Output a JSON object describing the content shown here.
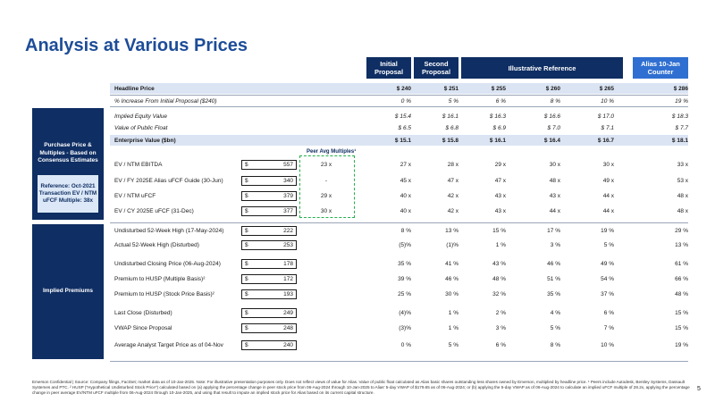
{
  "page": {
    "title": "Analysis at Various Prices",
    "page_number": "5"
  },
  "headers": {
    "initial": "Initial Proposal",
    "second": "Second Proposal",
    "illustrative": "Illustrative Reference",
    "alias": "Alias 10-Jan Counter"
  },
  "sidebar": {
    "purchase": "Purchase Price & Multiples - Based on Consensus Estimates",
    "reference": "Reference: Oct-2021 Transaction EV / NTM uFCF Multiple: 38x",
    "premiums": "Implied Premiums"
  },
  "peer_label": "Peer Avg Multiples¹",
  "rows_top": [
    {
      "label": "Headline Price",
      "values": [
        "$ 240",
        "$ 251",
        "$ 255",
        "$ 260",
        "$ 265",
        "$ 286"
      ]
    },
    {
      "label": "% Increase From Initial Proposal ($240)",
      "values": [
        "0 %",
        "5 %",
        "6 %",
        "8 %",
        "10 %",
        "19 %"
      ]
    }
  ],
  "rows_purchase": [
    {
      "label": "Implied Equity Value",
      "values": [
        "$ 15.4",
        "$ 16.1",
        "$ 16.3",
        "$ 16.6",
        "$ 17.0",
        "$ 18.3"
      ]
    },
    {
      "label": "Value of Public Float",
      "values": [
        "$ 6.5",
        "$ 6.8",
        "$ 6.9",
        "$ 7.0",
        "$ 7.1",
        "$ 7.7"
      ]
    },
    {
      "label": "Enterprise Value ($bn)",
      "values": [
        "$ 15.1",
        "$ 15.8",
        "$ 16.1",
        "$ 16.4",
        "$ 16.7",
        "$ 18.1"
      ]
    }
  ],
  "rows_multiples": [
    {
      "label": "EV / NTM EBITDA",
      "base": "557",
      "peer": "23 x",
      "values": [
        "27 x",
        "28 x",
        "29 x",
        "30 x",
        "30 x",
        "33 x"
      ]
    },
    {
      "label": "EV / FY 2025E Alias uFCF Guide (30-Jun)",
      "base": "340",
      "peer": "-",
      "values": [
        "45 x",
        "47 x",
        "47 x",
        "48 x",
        "49 x",
        "53 x"
      ]
    },
    {
      "label": "EV / NTM uFCF",
      "base": "379",
      "peer": "29 x",
      "values": [
        "40 x",
        "42 x",
        "43 x",
        "43 x",
        "44 x",
        "48 x"
      ]
    },
    {
      "label": "EV / CY 2025E uFCF (31-Dec)",
      "base": "377",
      "peer": "30 x",
      "values": [
        "40 x",
        "42 x",
        "43 x",
        "44 x",
        "44 x",
        "48 x"
      ]
    }
  ],
  "rows_premiums": [
    {
      "label": "Undisturbed 52-Week High (17-May-2024)",
      "base": "222",
      "values": [
        "8 %",
        "13 %",
        "15 %",
        "17 %",
        "19 %",
        "29 %"
      ]
    },
    {
      "label": "Actual 52-Week High (Disturbed)",
      "base": "253",
      "values": [
        "(5)%",
        "(1)%",
        "1 %",
        "3 %",
        "5 %",
        "13 %"
      ]
    },
    {
      "label": "Undisturbed Closing Price (06-Aug-2024)",
      "base": "178",
      "values": [
        "35 %",
        "41 %",
        "43 %",
        "46 %",
        "49 %",
        "61 %"
      ]
    },
    {
      "label": "Premium to HUSP (Multiple Basis)²",
      "base": "172",
      "values": [
        "39 %",
        "46 %",
        "48 %",
        "51 %",
        "54 %",
        "66 %"
      ]
    },
    {
      "label": "Premium to HUSP (Stock Price Basis)²",
      "base": "193",
      "values": [
        "25 %",
        "30 %",
        "32 %",
        "35 %",
        "37 %",
        "48 %"
      ]
    },
    {
      "label": "Last Close (Disturbed)",
      "base": "249",
      "values": [
        "(4)%",
        "1 %",
        "2 %",
        "4 %",
        "6 %",
        "15 %"
      ]
    },
    {
      "label": "VWAP Since Proposal",
      "base": "248",
      "values": [
        "(3)%",
        "1 %",
        "3 %",
        "5 %",
        "7 %",
        "15 %"
      ]
    },
    {
      "label": "Average Analyst Target Price as of 04-Nov",
      "base": "240",
      "values": [
        "0 %",
        "5 %",
        "6 %",
        "8 %",
        "10 %",
        "19 %"
      ]
    }
  ],
  "footnote": "Emerson Confidential | Source: Company filings, FactSet; market data as of 10-Jan-2025. Note: For illustrative presentation purposes only. Does not reflect views of value for Alias. Value of public float calculated as Alias basic shares outstanding less shares owned by Emerson, multiplied by headline price. ¹ Peers include Autodesk, Bentley Systems, Dassault Systemes and PTC. ² HUSP (\"Hypothetical Undisturbed Stock Price\") calculated based on (a) applying the percentage change in peer stock price from 06-Aug-2024 through 10-Jan-2025 to Alias' 5-day VWAP of $179.65 as of 06-Aug-2024; or (b) applying the 5-day VWAP as of 06-Aug-2024 to calculate an implied uFCF multiple of 28.2x, applying the percentage change in peer average EV/NTM uFCF multiple from 06-Aug-2024 through 10-Jan-2025, and using that result to impute an implied stock price for Alias based on its current capital structure."
}
